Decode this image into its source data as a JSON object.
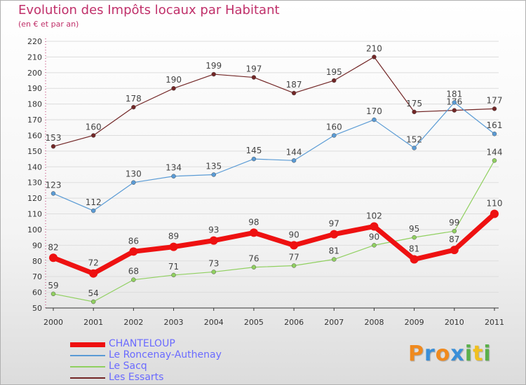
{
  "header": {
    "title": "Evolution des Impôts locaux par Habitant",
    "subtitle": "(en € et par an)"
  },
  "logo": {
    "letters": [
      "P",
      "r",
      "o",
      "x",
      "i",
      "t",
      "i"
    ]
  },
  "colors": {
    "title": "#c0306a",
    "legend_text": "#6a6aff",
    "axis": "#333333",
    "grid": "#dddddd",
    "logo_letters": [
      "#f08a1e",
      "#3a8fd8",
      "#f08a1e",
      "#3a8fd8",
      "#5ab04a",
      "#f0c020",
      "#5ab04a"
    ]
  },
  "chart_data": {
    "type": "line",
    "title": "Evolution des Impôts locaux par Habitant",
    "subtitle": "(en € et par an)",
    "xlabel": "",
    "ylabel": "",
    "x": [
      "2000",
      "2001",
      "2002",
      "2003",
      "2004",
      "2005",
      "2006",
      "2007",
      "2008",
      "2009",
      "2010",
      "2011"
    ],
    "ylim": [
      50,
      220
    ],
    "yticks": [
      50,
      60,
      70,
      80,
      90,
      100,
      110,
      120,
      130,
      140,
      150,
      160,
      170,
      180,
      190,
      200,
      210,
      220
    ],
    "grid": true,
    "legend": "bottom-left",
    "series": [
      {
        "name": "Les Essarts",
        "color": "#722626",
        "width": 1.2,
        "marker": 3,
        "values": [
          153,
          160,
          178,
          190,
          199,
          197,
          187,
          195,
          210,
          175,
          176,
          177
        ],
        "labels": [
          "153",
          "160",
          "178",
          "190",
          "199",
          "197",
          "187",
          "195",
          "210",
          "175",
          "176",
          "177"
        ]
      },
      {
        "name": "Le Roncenay-Authenay",
        "color": "#5a9bd5",
        "width": 1.2,
        "marker": 3,
        "values": [
          123,
          112,
          130,
          134,
          135,
          145,
          144,
          160,
          170,
          152,
          181,
          161
        ],
        "labels": [
          "123",
          "112",
          "130",
          "134",
          "135",
          "145",
          "144",
          "160",
          "170",
          "152",
          "181",
          "161"
        ]
      },
      {
        "name": "Le Sacq",
        "color": "#90d060",
        "width": 1.2,
        "marker": 3,
        "values": [
          59,
          54,
          68,
          71,
          73,
          76,
          77,
          81,
          90,
          95,
          99,
          144
        ],
        "labels": [
          "59",
          "54",
          "68",
          "71",
          "73",
          "76",
          "77",
          "81",
          "90",
          "95",
          "99",
          "144"
        ]
      },
      {
        "name": "CHANTELOUP",
        "color": "#ee1111",
        "width": 7,
        "marker": 6,
        "values": [
          82,
          72,
          86,
          89,
          93,
          98,
          90,
          97,
          102,
          81,
          87,
          110
        ],
        "labels": [
          "82",
          "72",
          "86",
          "89",
          "93",
          "98",
          "90",
          "97",
          "102",
          "81",
          "87",
          "110"
        ]
      }
    ],
    "legend_order": [
      "CHANTELOUP",
      "Le Roncenay-Authenay",
      "Le Sacq",
      "Les Essarts"
    ]
  }
}
